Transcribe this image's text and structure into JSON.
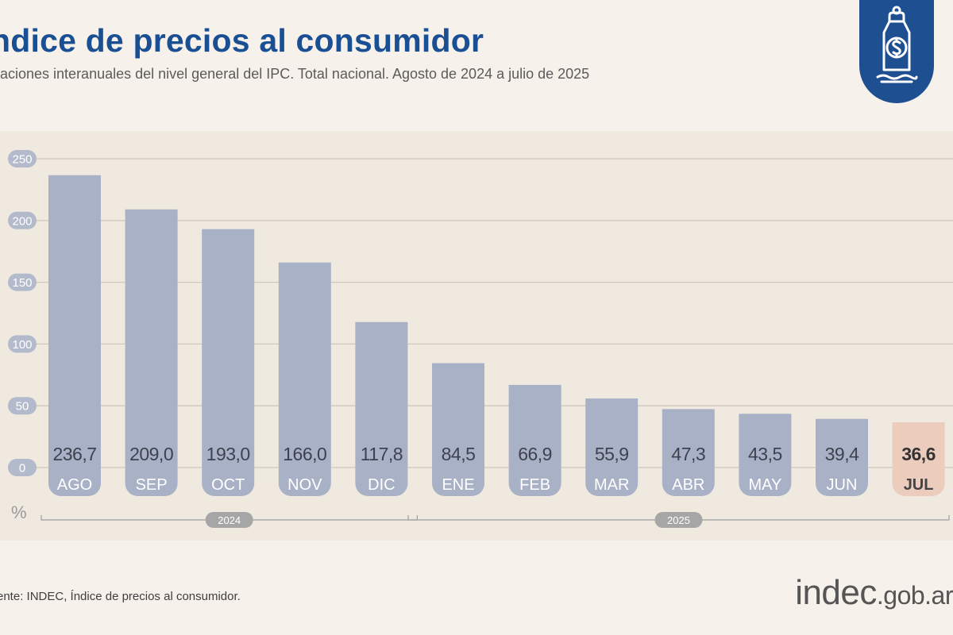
{
  "header": {
    "title": "ndice de precios al consumidor",
    "subtitle": "iaciones interanuales del nivel general del IPC. Total nacional. Agosto de 2024 a julio de 2025"
  },
  "footer": {
    "source": "ente: INDEC, Índice de precios al consumidor.",
    "logo_main": "indec",
    "logo_domain": ".gob.ar"
  },
  "colors": {
    "title": "#1b4f93",
    "bar": "#a8b1c6",
    "highlight_bar": "#ecccbd",
    "badge": "#1d4f91"
  },
  "icons": {
    "badge": "price-tag-dollar-icon"
  },
  "chart_data": {
    "type": "bar",
    "categories": [
      "AGO",
      "SEP",
      "OCT",
      "NOV",
      "DIC",
      "ENE",
      "FEB",
      "MAR",
      "ABR",
      "MAY",
      "JUN",
      "JUL"
    ],
    "values": [
      236.7,
      209.0,
      193.0,
      166.0,
      117.8,
      84.5,
      66.9,
      55.9,
      47.3,
      43.5,
      39.4,
      36.6
    ],
    "value_labels": [
      "236,7",
      "209,0",
      "193,0",
      "166,0",
      "117,8",
      "84,5",
      "66,9",
      "55,9",
      "47,3",
      "43,5",
      "39,4",
      "36,6"
    ],
    "highlight_index": 11,
    "ylim": [
      0,
      250
    ],
    "yticks": [
      0,
      50,
      100,
      150,
      200,
      250
    ],
    "ylabel": "%",
    "grid": true,
    "year_groups": [
      {
        "label": "2024",
        "start": 0,
        "end": 4
      },
      {
        "label": "2025",
        "start": 5,
        "end": 11
      }
    ]
  }
}
